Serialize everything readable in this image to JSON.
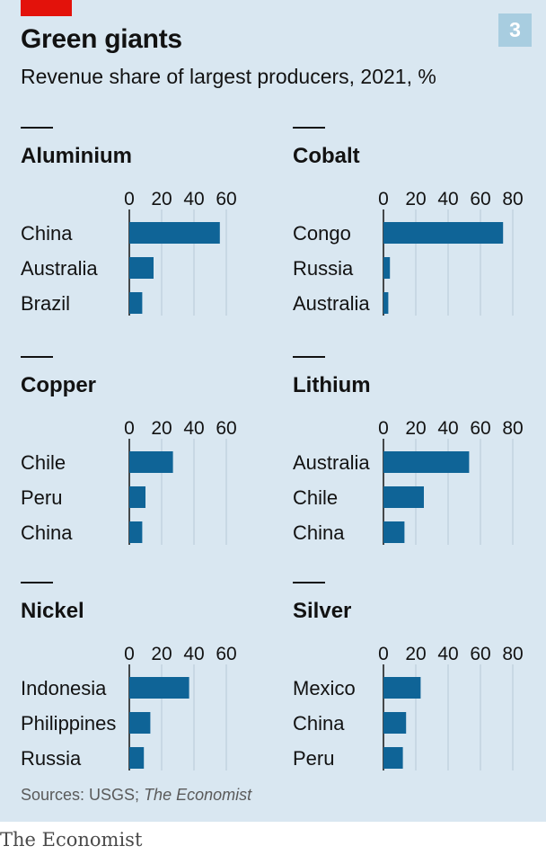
{
  "header": {
    "title": "Green giants",
    "subtitle": "Revenue share of largest producers, 2021, %",
    "badge": "3"
  },
  "footer": {
    "source_prefix": "Sources: USGS; ",
    "source_italic": "The Economist",
    "brand": "The Economist"
  },
  "colors": {
    "background": "#d9e7f1",
    "bar": "#0f6497",
    "accent_red": "#e3120b",
    "badge": "#a8cde0"
  },
  "chart_data": [
    {
      "type": "bar",
      "orientation": "horizontal",
      "title": "Aluminium",
      "categories": [
        "China",
        "Australia",
        "Brazil"
      ],
      "values": [
        56,
        15,
        8
      ],
      "xlim": [
        0,
        60
      ],
      "ticks": [
        "0",
        "20",
        "40",
        "60"
      ],
      "grid": true
    },
    {
      "type": "bar",
      "orientation": "horizontal",
      "title": "Cobalt",
      "categories": [
        "Congo",
        "Russia",
        "Australia"
      ],
      "values": [
        74,
        4,
        3
      ],
      "xlim": [
        0,
        80
      ],
      "ticks": [
        "0",
        "20",
        "40",
        "60",
        "80"
      ],
      "grid": true
    },
    {
      "type": "bar",
      "orientation": "horizontal",
      "title": "Copper",
      "categories": [
        "Chile",
        "Peru",
        "China"
      ],
      "values": [
        27,
        10,
        8
      ],
      "xlim": [
        0,
        60
      ],
      "ticks": [
        "0",
        "20",
        "40",
        "60"
      ],
      "grid": true
    },
    {
      "type": "bar",
      "orientation": "horizontal",
      "title": "Lithium",
      "categories": [
        "Australia",
        "Chile",
        "China"
      ],
      "values": [
        53,
        25,
        13
      ],
      "xlim": [
        0,
        80
      ],
      "ticks": [
        "0",
        "20",
        "40",
        "60",
        "80"
      ],
      "grid": true
    },
    {
      "type": "bar",
      "orientation": "horizontal",
      "title": "Nickel",
      "categories": [
        "Indonesia",
        "Philippines",
        "Russia"
      ],
      "values": [
        37,
        13,
        9
      ],
      "xlim": [
        0,
        60
      ],
      "ticks": [
        "0",
        "20",
        "40",
        "60"
      ],
      "grid": true
    },
    {
      "type": "bar",
      "orientation": "horizontal",
      "title": "Silver",
      "categories": [
        "Mexico",
        "China",
        "Peru"
      ],
      "values": [
        23,
        14,
        12
      ],
      "xlim": [
        0,
        80
      ],
      "ticks": [
        "0",
        "20",
        "40",
        "60",
        "80"
      ],
      "grid": true
    }
  ]
}
